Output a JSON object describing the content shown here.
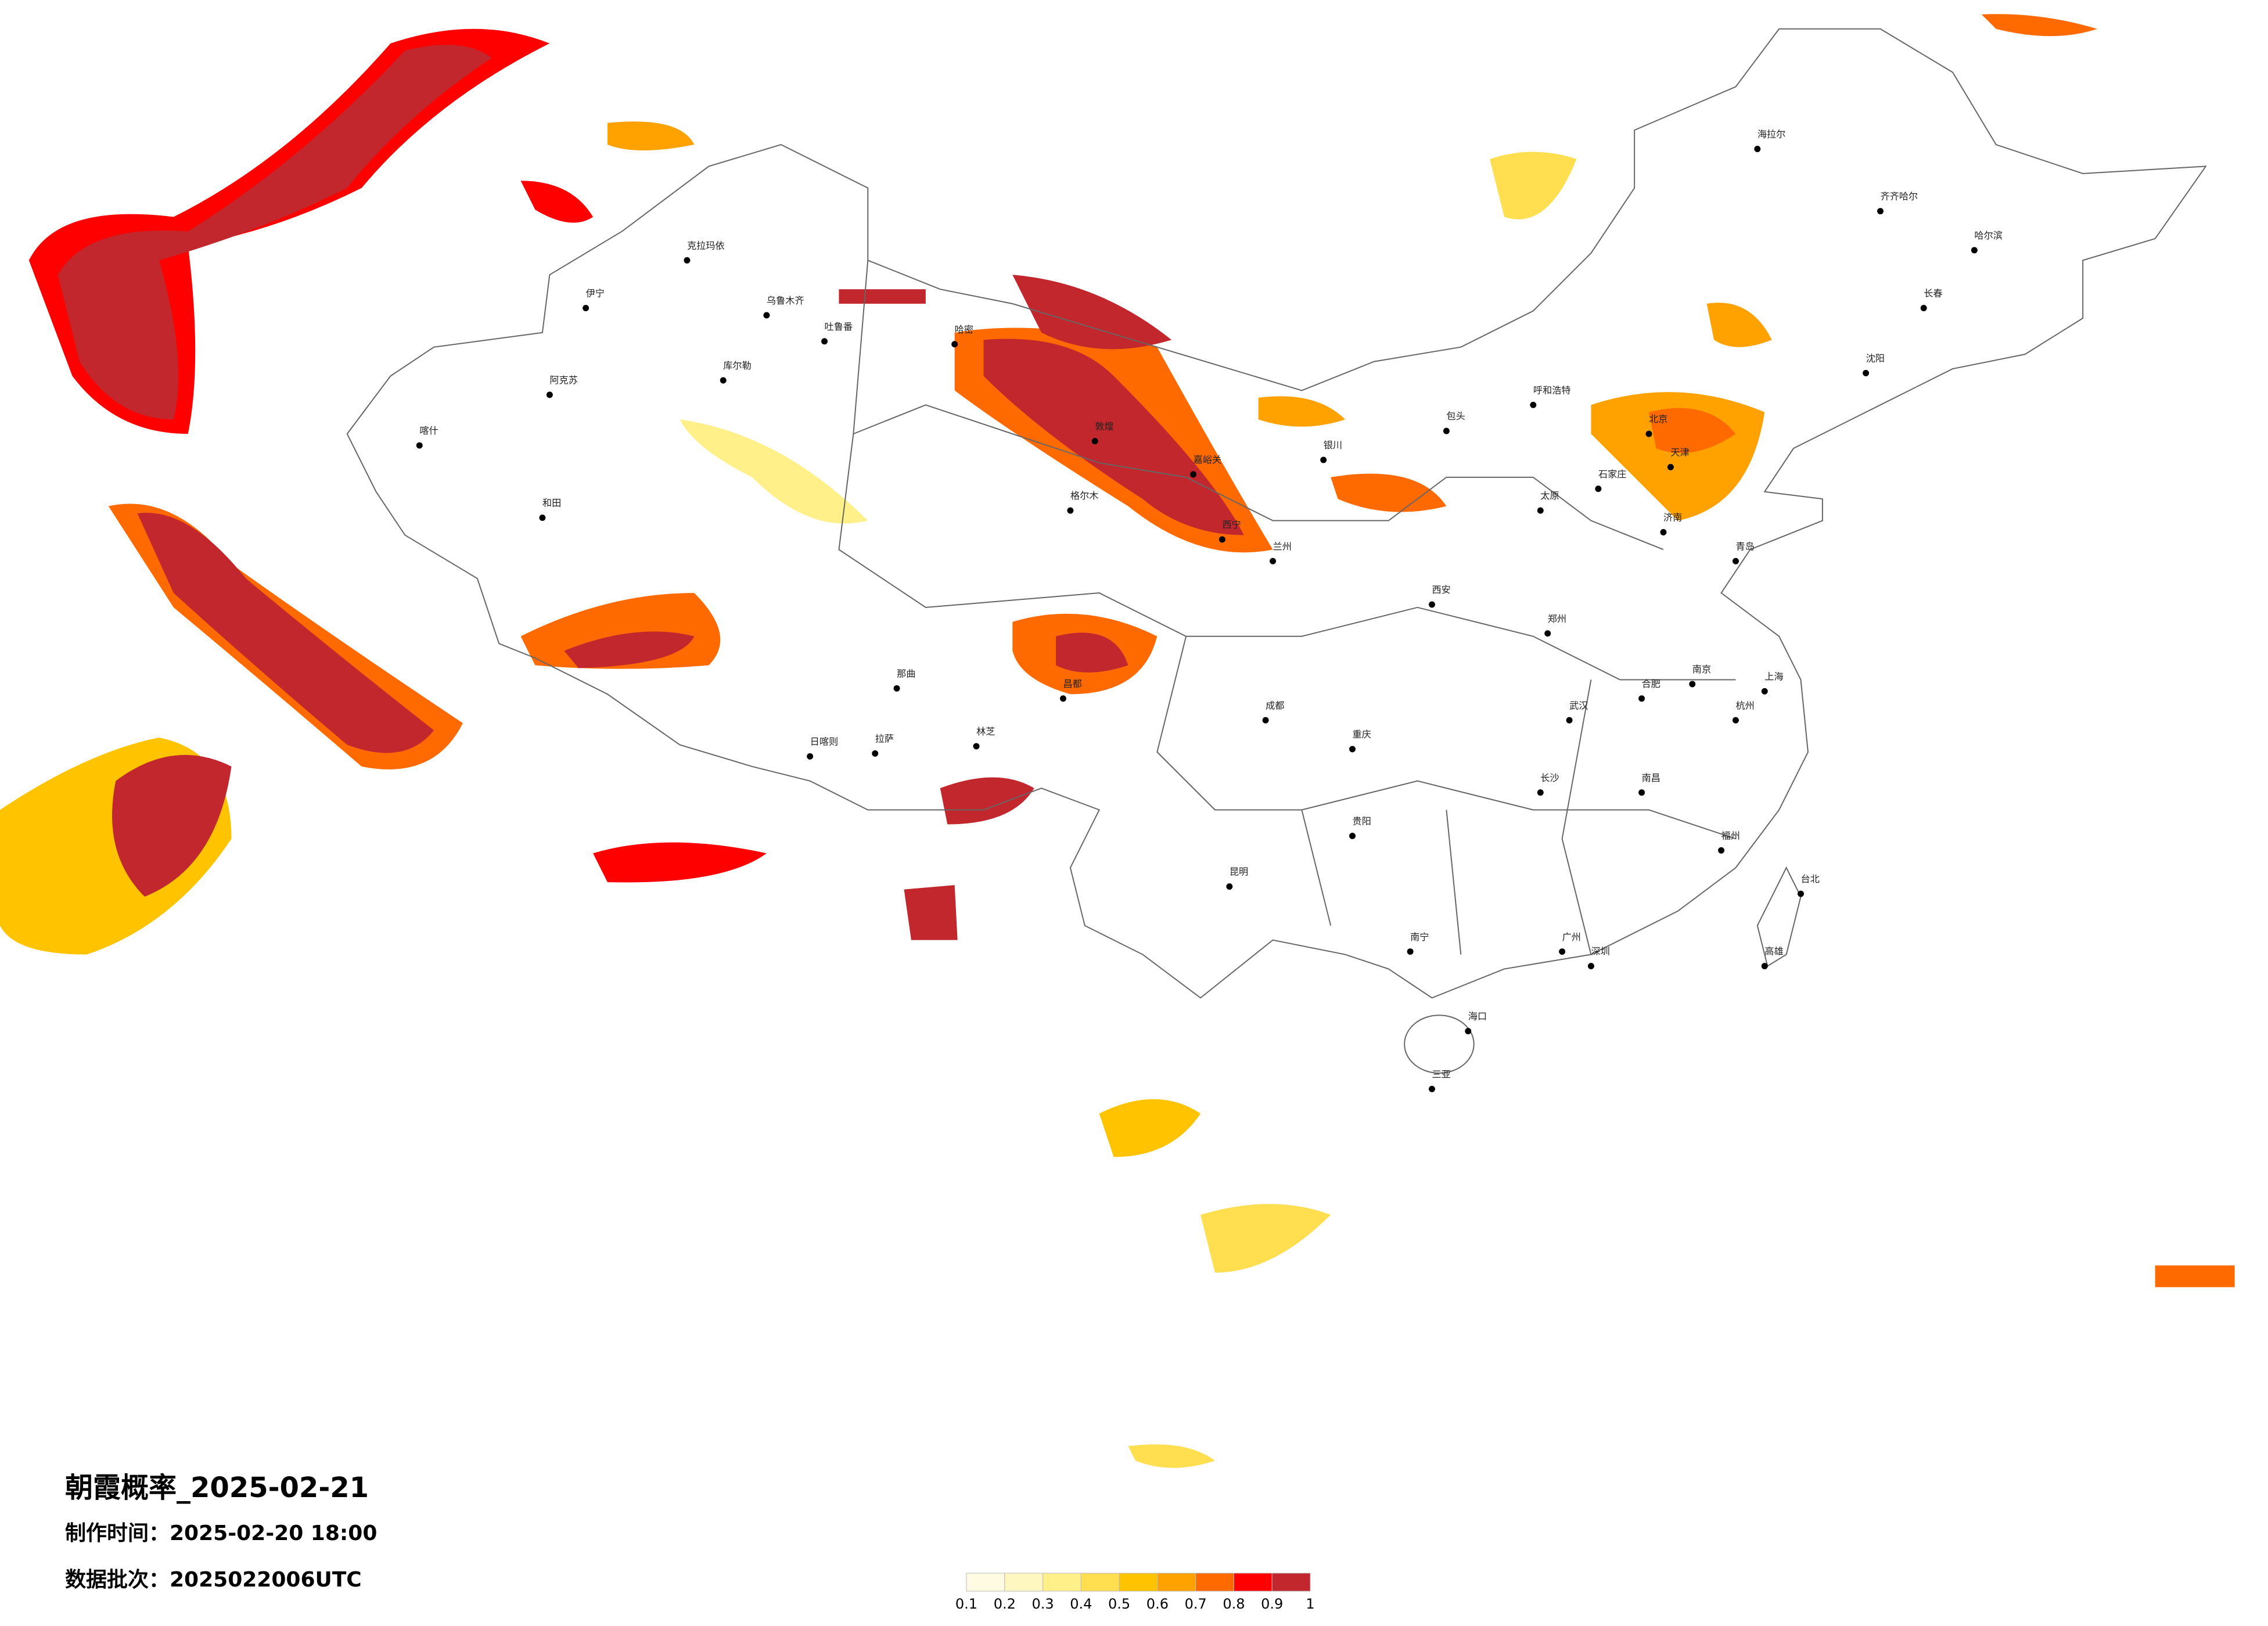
{
  "title": "朝霞概率_2025-02-21",
  "made_time": "制作时间：2025-02-20 18:00",
  "batch": "数据批次：2025022006UTC",
  "colorbar": {
    "ticks": [
      0.1,
      0.2,
      0.3,
      0.4,
      0.5,
      0.6,
      0.7,
      0.8,
      0.9,
      1
    ],
    "colors": [
      "#fffbe3",
      "#fff7bf",
      "#fff08a",
      "#ffde4f",
      "#ffc300",
      "#ffa200",
      "#ff6a00",
      "#ff0000",
      "#c1272d"
    ]
  },
  "cities": [
    "克拉玛依",
    "伊宁",
    "乌鲁木齐",
    "吐鲁番",
    "库尔勒",
    "阿克苏",
    "喀什",
    "和田",
    "哈密",
    "敦煌",
    "嘉峪关",
    "格尔木",
    "西宁",
    "兰州",
    "银川",
    "拉萨",
    "日喀则",
    "林芝",
    "那曲",
    "昌都",
    "呼和浩特",
    "包头",
    "北京",
    "天津",
    "石家庄",
    "太原",
    "西安",
    "郑州",
    "济南",
    "青岛",
    "南京",
    "上海",
    "杭州",
    "合肥",
    "武汉",
    "长沙",
    "南昌",
    "福州",
    "广州",
    "深圳",
    "南宁",
    "海口",
    "昆明",
    "贵阳",
    "成都",
    "重庆",
    "沈阳",
    "长春",
    "哈尔滨",
    "齐齐哈尔",
    "海拉尔",
    "台北",
    "高雄",
    "三亚"
  ]
}
